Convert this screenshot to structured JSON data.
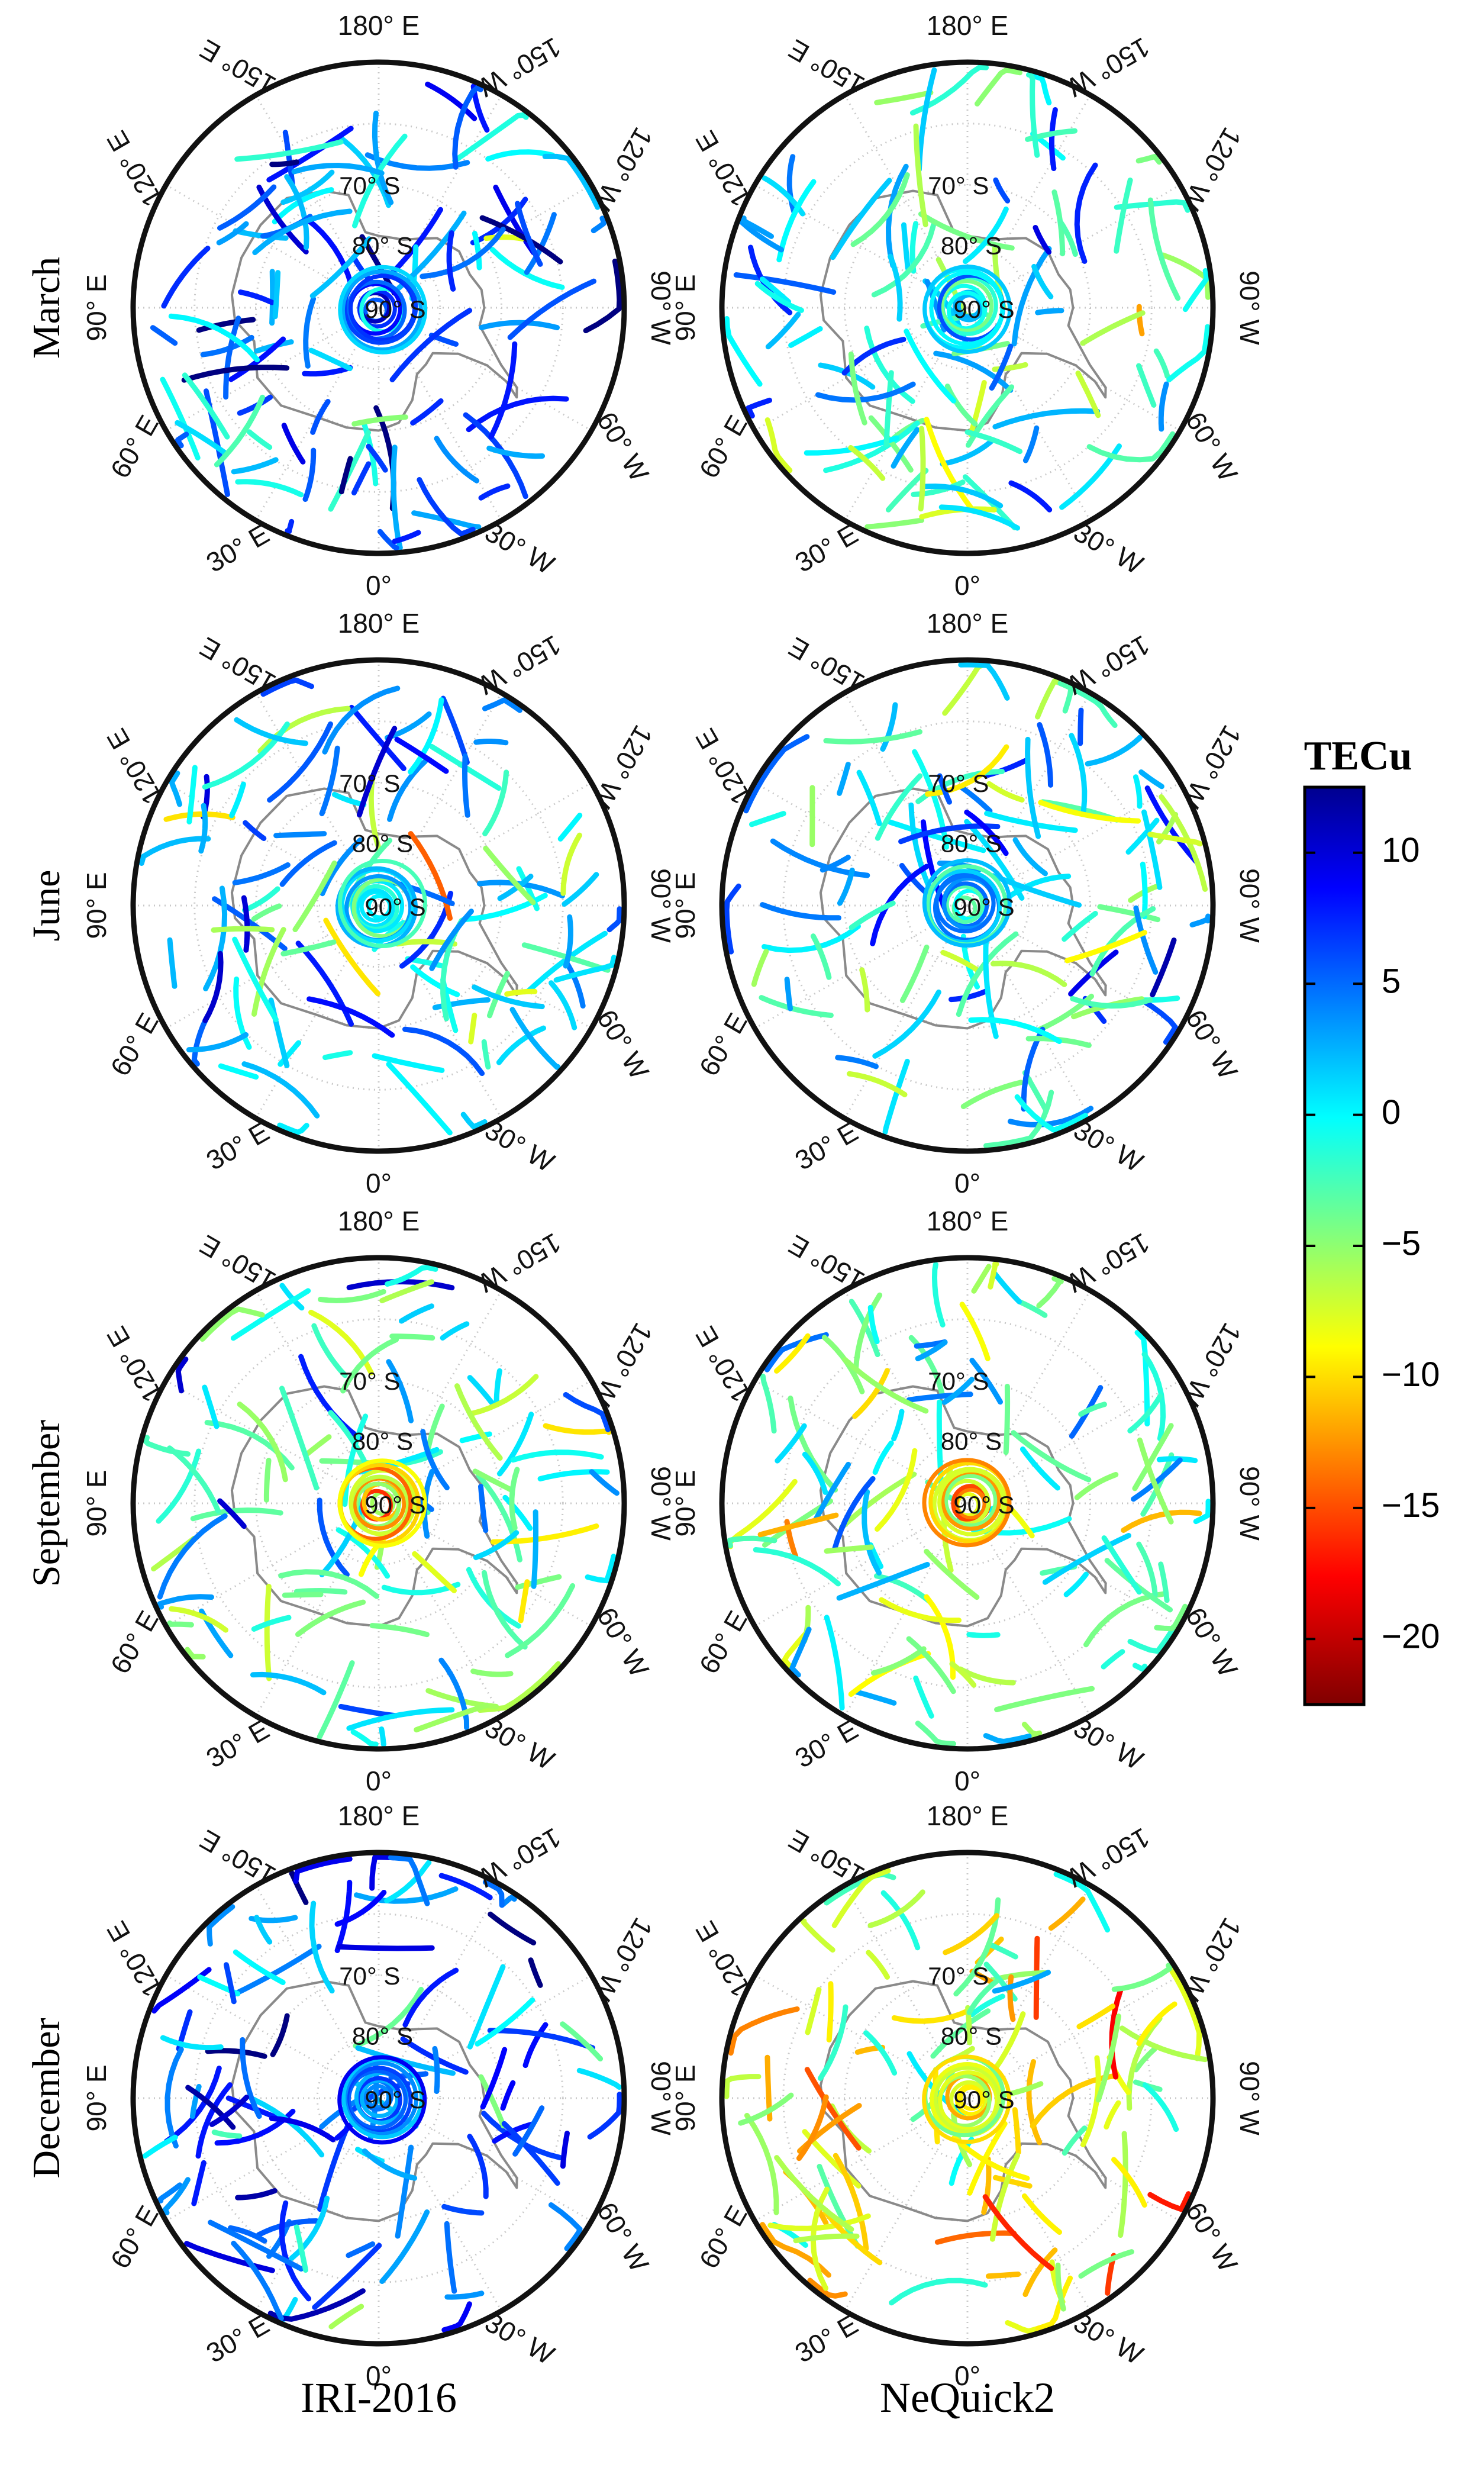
{
  "rows": [
    {
      "label": "March"
    },
    {
      "label": "June"
    },
    {
      "label": "September"
    },
    {
      "label": "December"
    }
  ],
  "columns": [
    {
      "label": "IRI-2016"
    },
    {
      "label": "NeQuick2"
    }
  ],
  "lon_labels": [
    "180° E",
    "150° E",
    "150° W",
    "120° E",
    "120° W",
    "90° E",
    "90° W",
    "60° E",
    "60° W",
    "30° E",
    "30° W",
    "0°"
  ],
  "lat_labels": [
    "70° S",
    "80° S",
    "90° S"
  ],
  "colorbar": {
    "title": "TECu",
    "ticks": [
      "10",
      "5",
      "0",
      "−5",
      "−10",
      "−15",
      "−20"
    ],
    "range": [
      -22.5,
      12.5
    ]
  },
  "colors": {
    "frame": "#111111",
    "grid": "#c8c8c8",
    "coast": "#8a8a8a"
  },
  "chart_data": {
    "type": "scatter",
    "description_units": "TEC residual (TECu)",
    "panel_mean_tecu": {
      "March": {
        "IRI-2016": 4.0,
        "NeQuick2": -1.0
      },
      "June": {
        "IRI-2016": 0.0,
        "NeQuick2": -1.0
      },
      "September": {
        "IRI-2016": -2.0,
        "NeQuick2": -3.0
      },
      "December": {
        "IRI-2016": 5.0,
        "NeQuick2": -8.0
      }
    }
  }
}
